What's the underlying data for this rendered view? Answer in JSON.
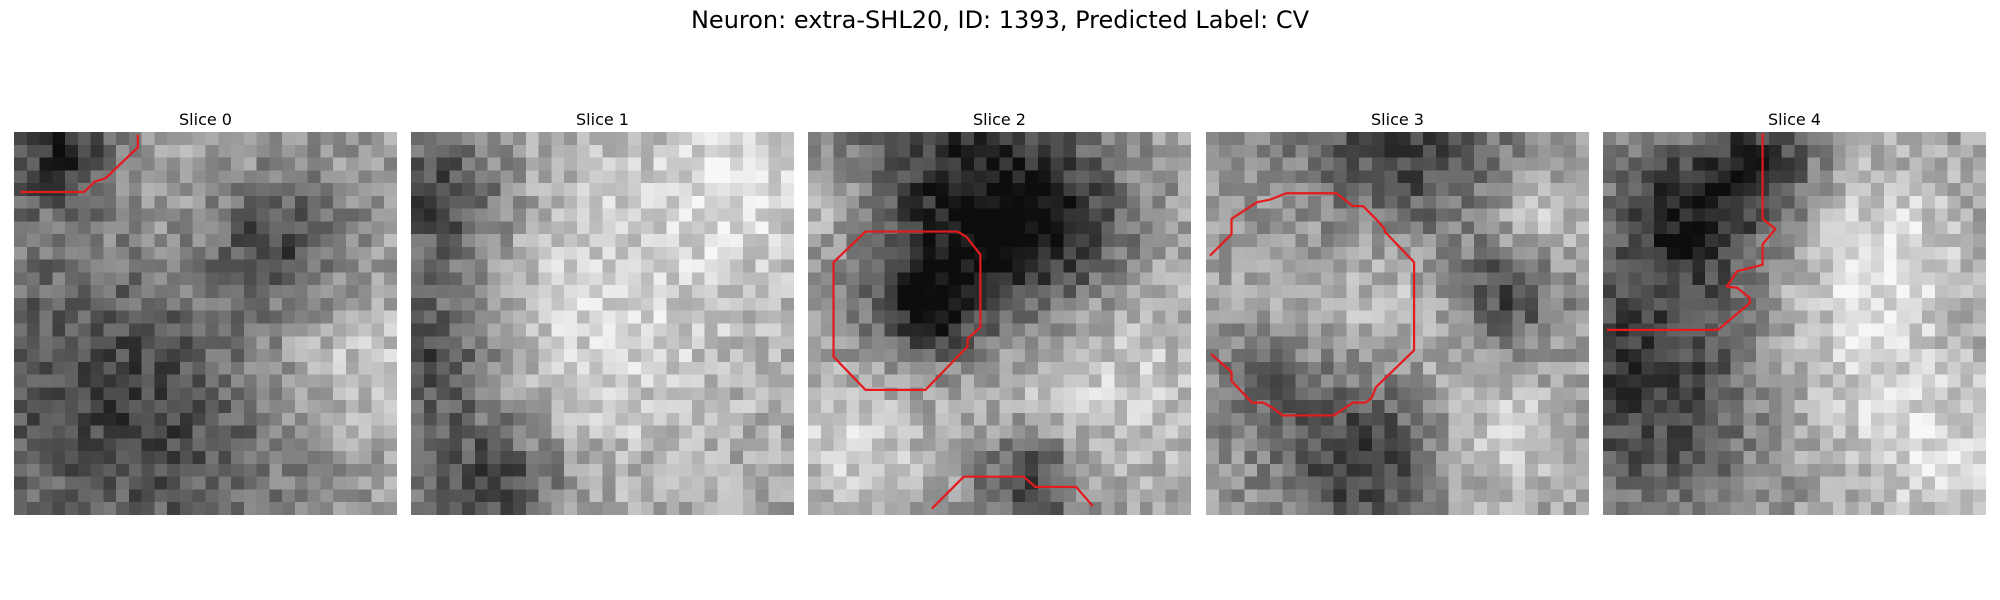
{
  "figure": {
    "title": "Neuron: extra-SHL20, ID: 1393, Predicted Label: CV"
  },
  "grid_size": 30,
  "contour_color": "#e41a1c",
  "panels": [
    {
      "label": "Slice 0",
      "seed": 11,
      "dark_blobs": [
        [
          9,
          19,
          10
        ],
        [
          3,
          1,
          3
        ],
        [
          20,
          8,
          4
        ]
      ],
      "bright_blobs": [
        [
          15,
          9,
          7
        ],
        [
          26,
          18,
          5
        ]
      ],
      "contours": [
        [
          [
            0.5,
            4.7
          ],
          [
            5.5,
            4.7
          ],
          [
            6.3,
            3.9
          ],
          [
            7.2,
            3.6
          ],
          [
            9.7,
            1.2
          ],
          [
            9.7,
            0.2
          ]
        ]
      ]
    },
    {
      "label": "Slice 1",
      "seed": 23,
      "dark_blobs": [
        [
          1,
          17,
          4
        ],
        [
          2,
          5,
          4
        ],
        [
          6,
          27,
          4
        ]
      ],
      "bright_blobs": [
        [
          14,
          14,
          10
        ],
        [
          26,
          3,
          5
        ]
      ],
      "contours": []
    },
    {
      "label": "Slice 2",
      "seed": 37,
      "dark_blobs": [
        [
          11,
          4,
          7
        ],
        [
          18,
          8,
          5
        ],
        [
          9,
          13,
          3
        ],
        [
          17,
          27,
          3
        ]
      ],
      "bright_blobs": [
        [
          22,
          17,
          7
        ],
        [
          2,
          5,
          3
        ],
        [
          3,
          24,
          4
        ]
      ],
      "contours": [
        [
          [
            4.5,
            7.8
          ],
          [
            2.0,
            10.2
          ],
          [
            2.0,
            17.6
          ],
          [
            4.5,
            20.2
          ],
          [
            9.2,
            20.2
          ],
          [
            12.5,
            16.8
          ],
          [
            12.5,
            16.2
          ],
          [
            13.5,
            15.3
          ],
          [
            13.5,
            9.6
          ],
          [
            12.4,
            8.2
          ],
          [
            11.7,
            7.8
          ],
          [
            4.5,
            7.8
          ]
        ],
        [
          [
            9.7,
            29.5
          ],
          [
            12.2,
            27.0
          ],
          [
            16.9,
            27.0
          ],
          [
            17.8,
            27.8
          ],
          [
            21.0,
            27.8
          ],
          [
            22.3,
            29.3
          ]
        ]
      ]
    },
    {
      "label": "Slice 3",
      "seed": 53,
      "dark_blobs": [
        [
          15,
          2,
          6
        ],
        [
          12,
          25,
          5
        ],
        [
          4,
          18,
          3
        ],
        [
          23,
          12,
          3
        ]
      ],
      "bright_blobs": [
        [
          14,
          11,
          6
        ],
        [
          25,
          7,
          3
        ],
        [
          4,
          17,
          3
        ],
        [
          22,
          24,
          4
        ]
      ],
      "contours": [
        [
          [
            0.3,
            9.7
          ],
          [
            2.0,
            8.0
          ],
          [
            2.0,
            6.8
          ],
          [
            4.0,
            5.5
          ],
          [
            5.0,
            5.3
          ],
          [
            6.3,
            4.8
          ],
          [
            10.2,
            4.8
          ],
          [
            11.5,
            5.8
          ],
          [
            12.3,
            5.8
          ],
          [
            13.3,
            6.8
          ],
          [
            14.0,
            7.6
          ],
          [
            14.0,
            7.8
          ],
          [
            16.3,
            10.2
          ],
          [
            16.3,
            17.1
          ],
          [
            13.3,
            20.0
          ],
          [
            13.0,
            20.8
          ],
          [
            12.5,
            21.2
          ],
          [
            11.5,
            21.2
          ],
          [
            10.0,
            22.2
          ],
          [
            6.0,
            22.2
          ],
          [
            5.2,
            21.6
          ],
          [
            4.5,
            21.2
          ],
          [
            3.6,
            21.2
          ],
          [
            2.0,
            19.5
          ],
          [
            2.0,
            18.8
          ],
          [
            0.4,
            17.4
          ]
        ]
      ]
    },
    {
      "label": "Slice 4",
      "seed": 71,
      "dark_blobs": [
        [
          3,
          19,
          7
        ],
        [
          6,
          6,
          4
        ],
        [
          12,
          2,
          3
        ]
      ],
      "bright_blobs": [
        [
          19,
          17,
          6
        ],
        [
          22,
          8,
          4
        ],
        [
          26,
          25,
          4
        ]
      ],
      "contours": [
        [
          [
            12.5,
            0.1
          ],
          [
            12.5,
            6.8
          ],
          [
            13.5,
            7.6
          ],
          [
            12.5,
            8.8
          ],
          [
            12.5,
            10.4
          ],
          [
            10.5,
            10.9
          ],
          [
            9.7,
            12.1
          ],
          [
            10.5,
            12.2
          ],
          [
            11.5,
            13.0
          ],
          [
            11.5,
            13.4
          ],
          [
            9.0,
            15.5
          ],
          [
            0.3,
            15.5
          ]
        ]
      ]
    }
  ]
}
